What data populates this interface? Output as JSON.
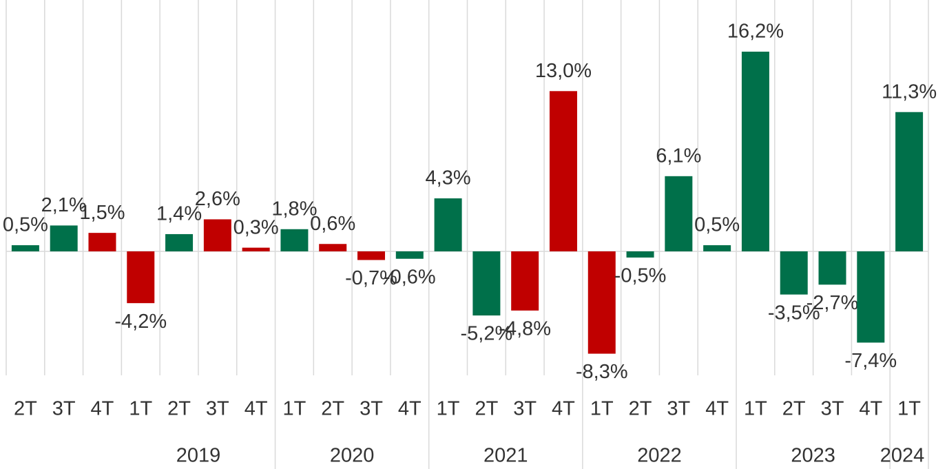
{
  "chart_data": {
    "type": "bar",
    "categories": [
      "2T",
      "3T",
      "4T",
      "1T",
      "2T",
      "3T",
      "4T",
      "1T",
      "2T",
      "3T",
      "4T",
      "1T",
      "2T",
      "3T",
      "4T",
      "1T",
      "2T",
      "3T",
      "4T",
      "1T",
      "2T",
      "3T",
      "4T",
      "1T"
    ],
    "years": [
      null,
      null,
      null,
      "2019",
      "2019",
      "2019",
      "2019",
      "2020",
      "2020",
      "2020",
      "2020",
      "2021",
      "2021",
      "2021",
      "2021",
      "2022",
      "2022",
      "2022",
      "2022",
      "2023",
      "2023",
      "2023",
      "2023",
      "2024"
    ],
    "values": [
      0.5,
      2.1,
      1.5,
      -4.2,
      1.4,
      2.6,
      0.3,
      1.8,
      0.6,
      -0.7,
      -0.6,
      4.3,
      -5.2,
      -4.8,
      13.0,
      -8.3,
      -0.5,
      6.1,
      0.5,
      16.2,
      -3.5,
      -2.7,
      -7.4,
      11.3
    ],
    "value_labels": [
      "0,5%",
      "2,1%",
      "1,5%",
      "-4,2%",
      "1,4%",
      "2,6%",
      "0,3%",
      "1,8%",
      "0,6%",
      "-0,7%",
      "-0,6%",
      "4,3%",
      "-5,2%",
      "-4,8%",
      "13,0%",
      "-8,3%",
      "-0,5%",
      "6,1%",
      "0,5%",
      "16,2%",
      "-3,5%",
      "-2,7%",
      "-7,4%",
      "11,3%"
    ],
    "colors": [
      "#00704a",
      "#00704a",
      "#c00000",
      "#c00000",
      "#00704a",
      "#c00000",
      "#c00000",
      "#00704a",
      "#c00000",
      "#c00000",
      "#00704a",
      "#00704a",
      "#00704a",
      "#c00000",
      "#c00000",
      "#c00000",
      "#00704a",
      "#00704a",
      "#00704a",
      "#00704a",
      "#00704a",
      "#00704a",
      "#00704a",
      "#00704a"
    ],
    "ylim": [
      -10,
      20
    ]
  }
}
